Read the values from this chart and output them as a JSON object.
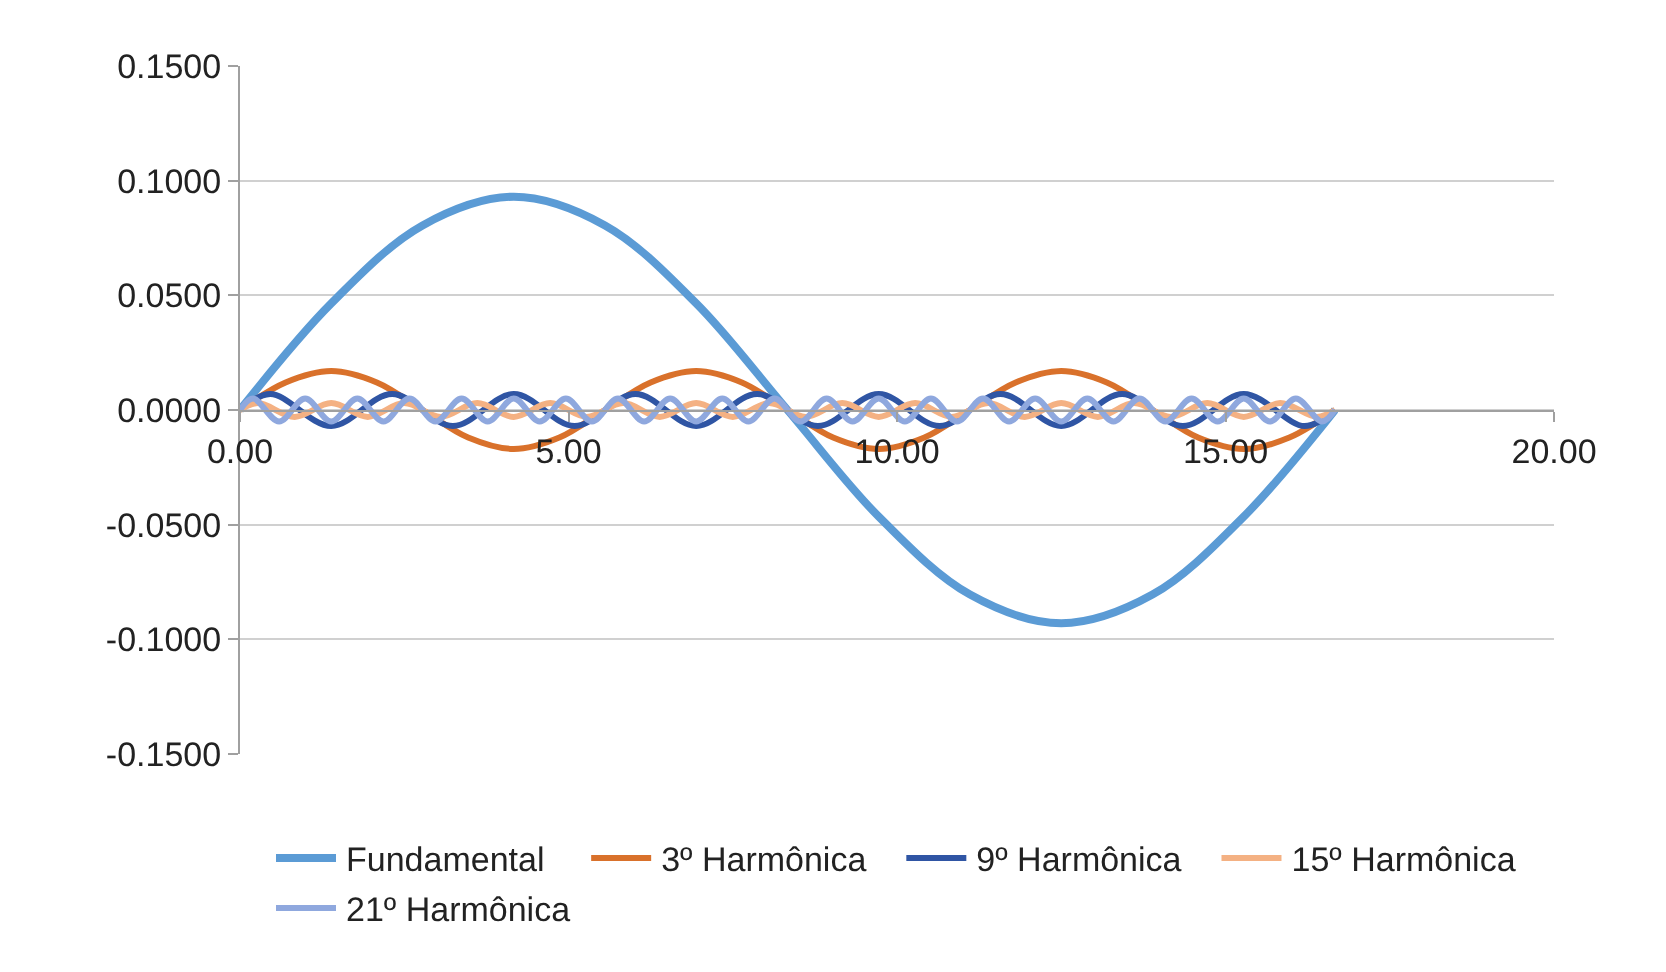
{
  "chart_data": {
    "type": "line",
    "xlim": [
      0,
      20
    ],
    "ylim": [
      -0.15,
      0.15
    ],
    "xticks": [
      {
        "value": 0,
        "label": "0.00"
      },
      {
        "value": 5,
        "label": "5.00"
      },
      {
        "value": 10,
        "label": "10.00"
      },
      {
        "value": 15,
        "label": "15.00"
      },
      {
        "value": 20,
        "label": "20.00"
      }
    ],
    "yticks": [
      {
        "value": -0.15,
        "label": "-0.1500"
      },
      {
        "value": -0.1,
        "label": "-0.1000"
      },
      {
        "value": -0.05,
        "label": "-0.0500"
      },
      {
        "value": 0,
        "label": "0.0000"
      },
      {
        "value": 0.05,
        "label": "0.0500"
      },
      {
        "value": 0.1,
        "label": "0.1000"
      },
      {
        "value": 0.15,
        "label": "0.1500"
      }
    ],
    "grid": "y",
    "legend": "bottom",
    "marker": "none",
    "line_style": "solid",
    "series": [
      {
        "name": "Fundamental",
        "color": "#5b9bd5",
        "x": [
          0,
          1.389,
          2.778,
          4.167,
          5.556,
          6.944,
          8.333,
          9.722,
          11.111,
          12.5,
          13.889,
          15.278,
          16.667
        ],
        "values": [
          0,
          0.0465,
          0.0805,
          0.093,
          0.0805,
          0.0465,
          0,
          -0.0465,
          -0.0805,
          -0.093,
          -0.0805,
          -0.0465,
          0
        ]
      },
      {
        "name": "3º Harmônica",
        "color": "#d9712b",
        "x": [
          0,
          0.694,
          1.389,
          2.083,
          2.778,
          3.472,
          4.167,
          4.861,
          5.556,
          6.25,
          6.944,
          7.639,
          8.333,
          9.028,
          9.722,
          10.417,
          11.111,
          11.806,
          12.5,
          13.194,
          13.889,
          14.583,
          15.278,
          15.972,
          16.667
        ],
        "values": [
          0,
          0.012,
          0.017,
          0.012,
          0,
          -0.012,
          -0.017,
          -0.012,
          0,
          0.012,
          0.017,
          0.012,
          0,
          -0.012,
          -0.017,
          -0.012,
          0,
          0.012,
          0.017,
          0.012,
          0,
          -0.012,
          -0.017,
          -0.012,
          0
        ]
      },
      {
        "name": "9º Harmônica",
        "color": "#2f55a4",
        "x": [
          0,
          0.463,
          1.389,
          2.315,
          3.241,
          4.167,
          5.093,
          6.019,
          6.944,
          7.87,
          8.796,
          9.722,
          10.648,
          11.574,
          12.5,
          13.426,
          14.352,
          15.278,
          16.204,
          16.667
        ],
        "values": [
          0,
          0.007,
          -0.007,
          0.007,
          -0.007,
          0.007,
          -0.007,
          0.007,
          -0.007,
          0.007,
          -0.007,
          0.007,
          -0.007,
          0.007,
          -0.007,
          0.007,
          -0.007,
          0.007,
          -0.007,
          0
        ]
      },
      {
        "name": "15º Harmônica",
        "color": "#f4b183",
        "x": [
          0,
          0.278,
          0.833,
          1.389,
          1.944,
          2.5,
          3.056,
          3.611,
          4.167,
          4.722,
          5.278,
          5.833,
          6.389,
          6.944,
          7.5,
          8.056,
          8.611,
          9.167,
          9.722,
          10.278,
          10.833,
          11.389,
          11.944,
          12.5,
          13.056,
          13.611,
          14.167,
          14.722,
          15.278,
          15.833,
          16.389,
          16.667
        ],
        "values": [
          0,
          0.003,
          -0.003,
          0.003,
          -0.003,
          0.003,
          -0.003,
          0.003,
          -0.003,
          0.003,
          -0.003,
          0.003,
          -0.003,
          0.003,
          -0.003,
          0.003,
          -0.003,
          0.003,
          -0.003,
          0.003,
          -0.003,
          0.003,
          -0.003,
          0.003,
          -0.003,
          0.003,
          -0.003,
          0.003,
          -0.003,
          0.003,
          -0.003,
          0
        ]
      },
      {
        "name": "21º Harmônica",
        "color": "#8fa8de",
        "x": [
          0,
          0.198,
          0.595,
          0.992,
          1.389,
          1.786,
          2.183,
          2.579,
          2.976,
          3.373,
          3.77,
          4.167,
          4.563,
          4.96,
          5.357,
          5.754,
          6.151,
          6.548,
          6.944,
          7.341,
          7.738,
          8.135,
          8.532,
          8.929,
          9.325,
          9.722,
          10.119,
          10.516,
          10.913,
          11.31,
          11.706,
          12.103,
          12.5,
          12.897,
          13.294,
          13.69,
          14.087,
          14.484,
          14.881,
          15.278,
          15.675,
          16.071,
          16.468,
          16.667
        ],
        "values": [
          0,
          0.005,
          -0.005,
          0.005,
          -0.005,
          0.005,
          -0.005,
          0.005,
          -0.005,
          0.005,
          -0.005,
          0.005,
          -0.005,
          0.005,
          -0.005,
          0.005,
          -0.005,
          0.005,
          -0.005,
          0.005,
          -0.005,
          0.005,
          -0.005,
          0.005,
          -0.005,
          0.005,
          -0.005,
          0.005,
          -0.005,
          0.005,
          -0.005,
          0.005,
          -0.005,
          0.005,
          -0.005,
          0.005,
          -0.005,
          0.005,
          -0.005,
          0.005,
          -0.005,
          0.005,
          -0.005,
          0
        ]
      }
    ]
  }
}
